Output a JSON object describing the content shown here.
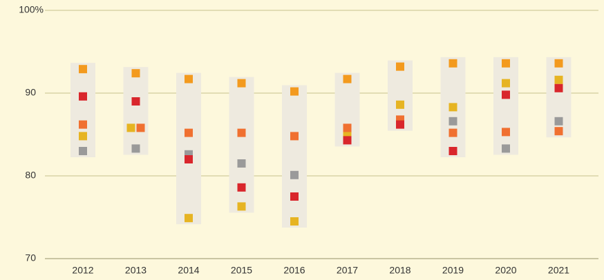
{
  "chart_data": {
    "type": "dot-range",
    "categories": [
      "2012",
      "2013",
      "2014",
      "2015",
      "2016",
      "2017",
      "2018",
      "2019",
      "2020",
      "2021"
    ],
    "series": [
      {
        "color": "#f39a1e",
        "values": [
          92.9,
          92.4,
          91.7,
          91.2,
          90.2,
          91.7,
          93.2,
          93.6,
          93.6,
          93.6
        ]
      },
      {
        "color": "#e6b422",
        "values": [
          84.8,
          85.8,
          74.9,
          76.3,
          74.5,
          85.0,
          88.6,
          88.3,
          91.2,
          91.6
        ]
      },
      {
        "color": "#f07030",
        "values": [
          86.2,
          85.8,
          85.2,
          85.2,
          84.8,
          85.8,
          86.8,
          85.2,
          85.3,
          85.4
        ]
      },
      {
        "color": "#9a9a9a",
        "values": [
          83.0,
          83.3,
          82.6,
          81.5,
          80.1,
          null,
          null,
          86.6,
          83.3,
          86.6
        ]
      },
      {
        "color": "#d9262c",
        "values": [
          89.6,
          89.0,
          82.0,
          78.6,
          77.5,
          84.3,
          86.2,
          83.0,
          89.8,
          90.6
        ]
      }
    ],
    "ylim": [
      70,
      100
    ],
    "yticks": [
      70,
      80,
      90,
      {
        "value": 100,
        "label": "100%"
      }
    ],
    "grid": true
  }
}
